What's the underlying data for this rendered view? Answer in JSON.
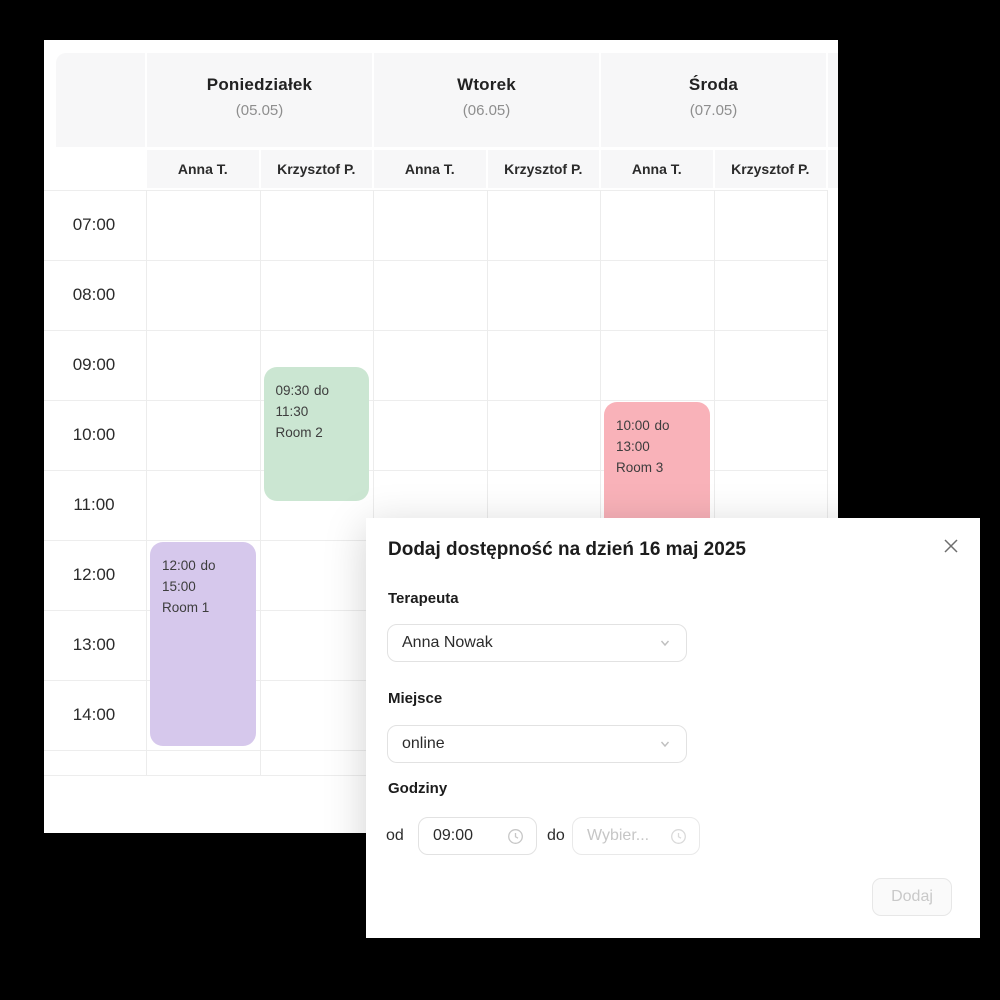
{
  "app": {
    "canvas_background": "#000000"
  },
  "calendar": {
    "days": [
      {
        "name": "Poniedziałek",
        "date": "(05.05)",
        "therapists": [
          "Anna T.",
          "Krzysztof P."
        ]
      },
      {
        "name": "Wtorek",
        "date": "(06.05)",
        "therapists": [
          "Anna T.",
          "Krzysztof P."
        ]
      },
      {
        "name": "Środa",
        "date": "(07.05)",
        "therapists": [
          "Anna T.",
          "Krzysztof P."
        ]
      }
    ],
    "times": [
      "07:00",
      "08:00",
      "09:00",
      "10:00",
      "11:00",
      "12:00",
      "13:00",
      "14:00"
    ],
    "range_connector": "do",
    "events": [
      {
        "day": 0,
        "therapist": 0,
        "start": "12:00",
        "end": "15:00",
        "room": "Room 1",
        "color": "#d6c8ec"
      },
      {
        "day": 0,
        "therapist": 1,
        "start": "09:30",
        "end": "11:30",
        "room": "Room 2",
        "color": "#cbe6d2"
      },
      {
        "day": 2,
        "therapist": 0,
        "start": "10:00",
        "end": "13:00",
        "room": "Room 3",
        "color": "#f9b2b9"
      }
    ]
  },
  "modal": {
    "title": "Dodaj dostępność na dzień 16 maj 2025",
    "fields": {
      "therapist": {
        "label": "Terapeuta",
        "value": "Anna Nowak"
      },
      "place": {
        "label": "Miejsce",
        "value": "online"
      },
      "hours": {
        "label": "Godziny",
        "from_label": "od",
        "from_value": "09:00",
        "to_label": "do",
        "to_placeholder": "Wybier..."
      }
    },
    "submit_label": "Dodaj"
  }
}
